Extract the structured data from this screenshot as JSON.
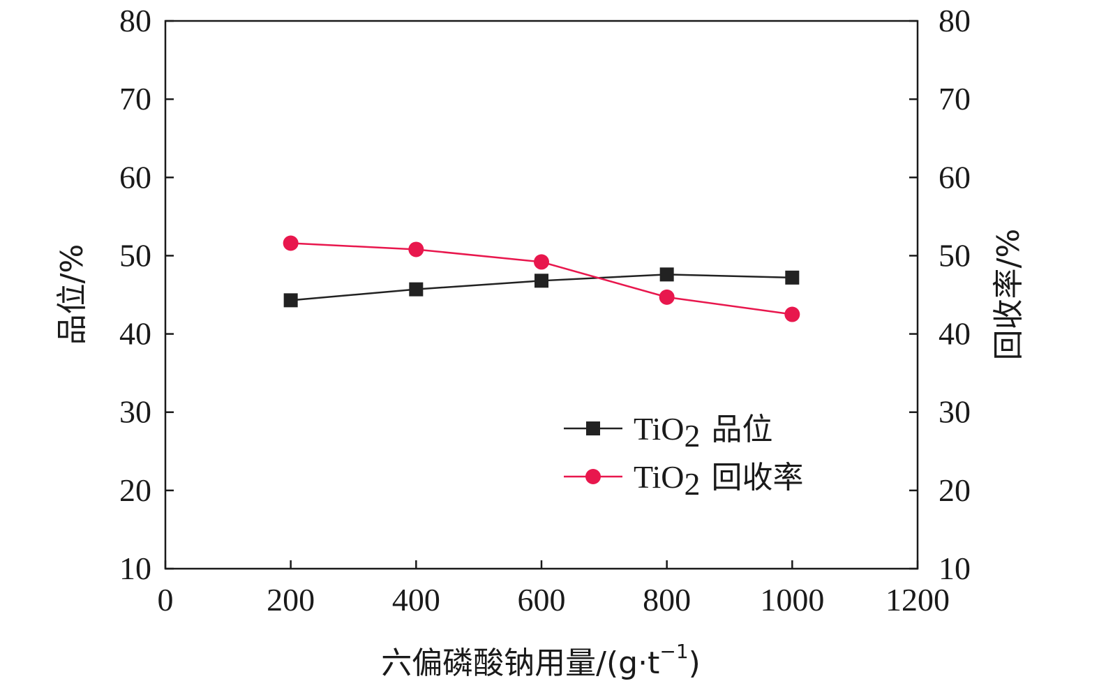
{
  "chart_data": {
    "type": "line",
    "x": [
      200,
      400,
      600,
      800,
      1000
    ],
    "xlim": [
      0,
      1200
    ],
    "x_ticks": [
      "0",
      "200",
      "400",
      "600",
      "800",
      "1000",
      "1200"
    ],
    "ylim_left": [
      10,
      80
    ],
    "ylim_right": [
      10,
      80
    ],
    "y_ticks": [
      "10",
      "20",
      "30",
      "40",
      "50",
      "60",
      "70",
      "80"
    ],
    "xlabel": {
      "main": "六偏磷酸钠用量/(g·t",
      "sup": "−1",
      "close": ")"
    },
    "ylabel_left": "品位/%",
    "ylabel_right": "回收率/%",
    "grid": false,
    "legend_position": "lower-right",
    "series": [
      {
        "name_prefix": "TiO",
        "name_sub": "2",
        "name_suffix": "品位",
        "axis": "left",
        "marker": "square",
        "color": "#222222",
        "values": [
          44.3,
          45.7,
          46.8,
          47.6,
          47.2
        ]
      },
      {
        "name_prefix": "TiO",
        "name_sub": "2",
        "name_suffix": "回收率",
        "axis": "right",
        "marker": "circle",
        "color": "#e8174d",
        "values": [
          51.6,
          50.8,
          49.2,
          44.7,
          42.5
        ]
      }
    ]
  }
}
